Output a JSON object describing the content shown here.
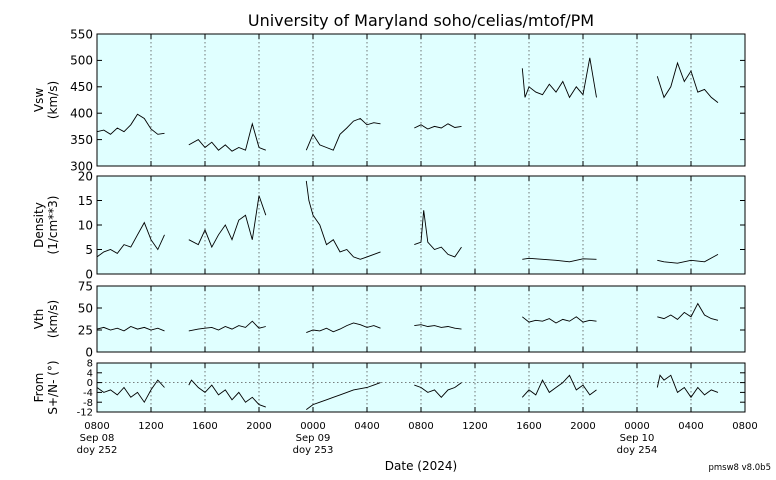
{
  "title": "University of Maryland  soho/celias/mtof/PM",
  "xlabel": "Date (2024)",
  "credit": "pmsw8 v8.0b5",
  "colors": {
    "panel_bg": "#e0ffff",
    "line": "#000000",
    "grid": "#555555"
  },
  "x_ticks": [
    {
      "label": "0800",
      "date": "Sep 08",
      "doy": "doy 252",
      "t": 0
    },
    {
      "label": "1200",
      "t": 4
    },
    {
      "label": "1600",
      "t": 8
    },
    {
      "label": "2000",
      "t": 12
    },
    {
      "label": "0000",
      "date": "Sep 09",
      "doy": "doy 253",
      "t": 16
    },
    {
      "label": "0400",
      "t": 20
    },
    {
      "label": "0800",
      "t": 24
    },
    {
      "label": "1200",
      "t": 28
    },
    {
      "label": "1600",
      "t": 32
    },
    {
      "label": "2000",
      "t": 36
    },
    {
      "label": "0000",
      "date": "Sep 10",
      "doy": "doy 254",
      "t": 40
    },
    {
      "label": "0400",
      "t": 44
    },
    {
      "label": "0800",
      "t": 48
    }
  ],
  "chart_data": [
    {
      "type": "line",
      "id": "vsw",
      "ylabel": [
        "Vsw",
        "(km/s)"
      ],
      "xlim": [
        0,
        48
      ],
      "ylim": [
        300,
        550
      ],
      "yticks": [
        300,
        350,
        400,
        450,
        500,
        550
      ],
      "segments": [
        {
          "x": [
            0,
            0.5,
            1,
            1.5,
            2,
            2.5,
            3,
            3.5,
            4,
            4.5,
            5
          ],
          "y": [
            365,
            368,
            360,
            372,
            365,
            378,
            398,
            390,
            370,
            360,
            362
          ]
        },
        {
          "x": [
            6.8,
            7.5,
            8,
            8.5,
            9,
            9.5,
            10,
            10.5,
            11,
            11.5,
            12,
            12.5
          ],
          "y": [
            340,
            350,
            335,
            345,
            330,
            340,
            328,
            335,
            330,
            380,
            335,
            330
          ]
        },
        {
          "x": [
            15.5,
            16,
            16.5,
            17,
            17.5,
            18,
            18.5,
            19,
            19.5,
            20,
            20.5,
            21
          ],
          "y": [
            330,
            360,
            340,
            335,
            330,
            360,
            372,
            385,
            390,
            378,
            382,
            380
          ]
        },
        {
          "x": [
            23.5,
            24,
            24.5,
            25,
            25.5,
            26,
            26.5,
            27
          ],
          "y": [
            372,
            378,
            370,
            375,
            372,
            380,
            373,
            375
          ]
        },
        {
          "x": [
            31.5,
            31.7,
            32,
            32.5,
            33,
            33.5,
            34,
            34.5,
            35,
            35.5,
            36,
            36.5,
            37
          ],
          "y": [
            485,
            430,
            450,
            440,
            435,
            455,
            440,
            460,
            430,
            450,
            435,
            505,
            430
          ]
        },
        {
          "x": [
            41.5,
            42,
            42.5,
            43,
            43.5,
            44,
            44.5,
            45,
            45.5,
            46
          ],
          "y": [
            470,
            430,
            450,
            495,
            460,
            480,
            440,
            445,
            430,
            420
          ]
        }
      ]
    },
    {
      "type": "line",
      "id": "density",
      "ylabel": [
        "Density",
        "(1/cm**3)"
      ],
      "xlim": [
        0,
        48
      ],
      "ylim": [
        0,
        20
      ],
      "yticks": [
        0,
        5,
        10,
        15,
        20
      ],
      "segments": [
        {
          "x": [
            0,
            0.5,
            1,
            1.5,
            2,
            2.5,
            3,
            3.5,
            4,
            4.5,
            5
          ],
          "y": [
            3.5,
            4.5,
            5,
            4.2,
            6,
            5.5,
            8,
            10.5,
            7,
            5,
            8
          ]
        },
        {
          "x": [
            6.8,
            7.5,
            8,
            8.5,
            9,
            9.5,
            10,
            10.5,
            11,
            11.5,
            12,
            12.5
          ],
          "y": [
            7,
            6,
            9,
            5.5,
            8,
            10,
            7,
            11,
            12,
            7,
            16,
            12
          ]
        },
        {
          "x": [
            15.5,
            15.7,
            16,
            16.5,
            17,
            17.5,
            18,
            18.5,
            19,
            19.5,
            20,
            20.5,
            21
          ],
          "y": [
            19,
            15,
            12,
            10,
            6,
            7,
            4.5,
            5,
            3.5,
            3,
            3.5,
            4,
            4.5
          ]
        },
        {
          "x": [
            23.5,
            24,
            24.2,
            24.5,
            25,
            25.5,
            26,
            26.5,
            27
          ],
          "y": [
            6,
            6.5,
            13,
            6.5,
            5,
            5.5,
            4,
            3.5,
            5.5
          ]
        },
        {
          "x": [
            31.5,
            32,
            33,
            34,
            35,
            36,
            37
          ],
          "y": [
            3,
            3.2,
            3,
            2.8,
            2.5,
            3.1,
            3
          ]
        },
        {
          "x": [
            41.5,
            42,
            43,
            44,
            45,
            46
          ],
          "y": [
            2.8,
            2.5,
            2.2,
            2.8,
            2.5,
            4
          ]
        }
      ]
    },
    {
      "type": "line",
      "id": "vth",
      "ylabel": [
        "Vth",
        "(km/s)"
      ],
      "xlim": [
        0,
        48
      ],
      "ylim": [
        0,
        75
      ],
      "yticks": [
        0,
        25,
        50,
        75
      ],
      "segments": [
        {
          "x": [
            0,
            0.5,
            1,
            1.5,
            2,
            2.5,
            3,
            3.5,
            4,
            4.5,
            5
          ],
          "y": [
            26,
            28,
            25,
            27,
            24,
            29,
            26,
            28,
            25,
            27,
            24
          ]
        },
        {
          "x": [
            6.8,
            7.5,
            8,
            8.5,
            9,
            9.5,
            10,
            10.5,
            11,
            11.5,
            12,
            12.5
          ],
          "y": [
            24,
            26,
            27,
            28,
            25,
            29,
            26,
            30,
            28,
            35,
            27,
            29
          ]
        },
        {
          "x": [
            15.5,
            16,
            16.5,
            17,
            17.5,
            18,
            18.5,
            19,
            19.5,
            20,
            20.5,
            21
          ],
          "y": [
            22,
            25,
            24,
            27,
            23,
            26,
            30,
            33,
            31,
            28,
            30,
            27
          ]
        },
        {
          "x": [
            23.5,
            24,
            24.5,
            25,
            25.5,
            26,
            26.5,
            27
          ],
          "y": [
            30,
            31,
            29,
            30,
            28,
            29,
            27,
            26
          ]
        },
        {
          "x": [
            31.5,
            32,
            32.5,
            33,
            33.5,
            34,
            34.5,
            35,
            35.5,
            36,
            36.5,
            37
          ],
          "y": [
            40,
            34,
            36,
            35,
            38,
            33,
            37,
            35,
            40,
            34,
            36,
            35
          ]
        },
        {
          "x": [
            41.5,
            42,
            42.5,
            43,
            43.5,
            44,
            44.5,
            45,
            45.5,
            46
          ],
          "y": [
            40,
            38,
            42,
            37,
            45,
            40,
            55,
            42,
            38,
            36
          ]
        }
      ]
    },
    {
      "type": "line",
      "id": "flow",
      "ylabel": [
        "From",
        "S+/N- (°)"
      ],
      "xlim": [
        0,
        48
      ],
      "ylim": [
        -12,
        8
      ],
      "yticks": [
        -12,
        -8,
        -4,
        0,
        4,
        8
      ],
      "zero_line": true,
      "segments": [
        {
          "x": [
            0,
            0.5,
            1,
            1.5,
            2,
            2.5,
            3,
            3.5,
            4,
            4.5,
            5
          ],
          "y": [
            -2,
            -4,
            -3,
            -5,
            -2,
            -6,
            -4,
            -8,
            -3,
            1,
            -2
          ]
        },
        {
          "x": [
            6.8,
            7,
            7.5,
            8,
            8.5,
            9,
            9.5,
            10,
            10.5,
            11,
            11.5,
            12,
            12.5
          ],
          "y": [
            -1,
            1,
            -2,
            -4,
            -1,
            -5,
            -3,
            -7,
            -4,
            -8,
            -6,
            -9,
            -10
          ]
        },
        {
          "x": [
            15.5,
            16,
            16.5,
            17,
            17.5,
            18,
            18.5,
            19,
            19.5,
            20,
            20.5,
            21
          ],
          "y": [
            -11,
            -9,
            -8,
            -7,
            -6,
            -5,
            -4,
            -3,
            -2.5,
            -2,
            -1,
            0
          ]
        },
        {
          "x": [
            23.5,
            24,
            24.5,
            25,
            25.5,
            26,
            26.5,
            27
          ],
          "y": [
            -1,
            -2,
            -4,
            -3,
            -6,
            -3,
            -2,
            0
          ]
        },
        {
          "x": [
            31.5,
            32,
            32.5,
            33,
            33.5,
            34,
            34.5,
            35,
            35.5,
            36,
            36.5,
            37
          ],
          "y": [
            -6,
            -3,
            -5,
            1,
            -4,
            -2,
            0,
            3,
            -3,
            -1,
            -5,
            -3
          ]
        },
        {
          "x": [
            41.5,
            41.7,
            42,
            42.5,
            43,
            43.5,
            44,
            44.5,
            45,
            45.5,
            46
          ],
          "y": [
            -2,
            3,
            1,
            3,
            -4,
            -2,
            -6,
            -2,
            -5,
            -3,
            -4
          ]
        }
      ]
    }
  ]
}
